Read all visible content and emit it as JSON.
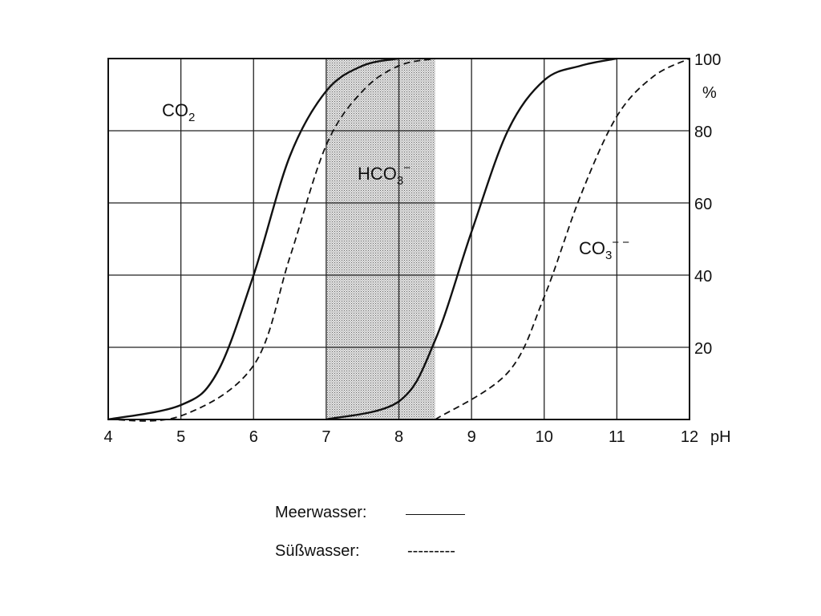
{
  "chart_data": {
    "type": "line",
    "xlim": [
      4,
      12
    ],
    "ylim": [
      0,
      100
    ],
    "x_ticks": [
      "4",
      "5",
      "6",
      "7",
      "8",
      "9",
      "10",
      "11",
      "12"
    ],
    "y_ticks": [
      "20",
      "40",
      "60",
      "80",
      "100"
    ],
    "x_unit": "pH",
    "y_unit": "%",
    "grid": true,
    "shaded_band": [
      7,
      8.5
    ],
    "series": [
      {
        "name": "Meerwasser",
        "style": "solid",
        "points": [
          [
            4,
            0
          ],
          [
            5,
            4
          ],
          [
            5.5,
            13
          ],
          [
            6,
            40
          ],
          [
            6.5,
            73
          ],
          [
            7,
            91
          ],
          [
            7.5,
            98
          ],
          [
            8,
            100
          ]
        ]
      },
      {
        "name": "Süßwasser",
        "style": "dashed",
        "points": [
          [
            4,
            0
          ],
          [
            5,
            1
          ],
          [
            6,
            15
          ],
          [
            6.5,
            45
          ],
          [
            7,
            76
          ],
          [
            7.5,
            91
          ],
          [
            8,
            98
          ],
          [
            8.5,
            100
          ]
        ]
      },
      {
        "name": "Meerwasser",
        "style": "solid",
        "points": [
          [
            7,
            0
          ],
          [
            8,
            5
          ],
          [
            8.5,
            22
          ],
          [
            9,
            52
          ],
          [
            9.5,
            80
          ],
          [
            10,
            94
          ],
          [
            10.5,
            98
          ],
          [
            11,
            100
          ]
        ]
      },
      {
        "name": "Süßwasser",
        "style": "dashed",
        "points": [
          [
            8.5,
            0
          ],
          [
            9.5,
            13
          ],
          [
            10,
            34
          ],
          [
            10.5,
            62
          ],
          [
            11,
            84
          ],
          [
            11.5,
            95
          ],
          [
            12,
            100
          ]
        ]
      }
    ],
    "annotations": {
      "co2": "CO",
      "co2_sub": "2",
      "hco3": "HCO",
      "hco3_sub": "3",
      "hco3_sup": "−",
      "co3": "CO",
      "co3_sub": "3",
      "co3_sup": "− −"
    }
  },
  "legend": {
    "meerwasser_label": "Meerwasser:",
    "suesswasser_label": "Süßwasser:",
    "suesswasser_sample": "---------"
  },
  "colors": {
    "line": "#111111",
    "grid": "#222222",
    "band": "#c8c8c8"
  }
}
